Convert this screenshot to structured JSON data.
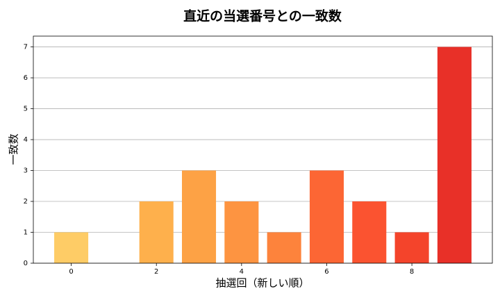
{
  "chart_data": {
    "type": "bar",
    "title": "直近の当選番号との一致数",
    "x_label": "抽選回（新しい順）",
    "y_label": "一致数",
    "x": [
      0,
      1,
      2,
      3,
      4,
      5,
      6,
      7,
      8,
      9
    ],
    "values": [
      1,
      0,
      2,
      3,
      2,
      1,
      3,
      2,
      1,
      7
    ],
    "colors": [
      "#fecc66",
      "#febe59",
      "#feb04c",
      "#fda245",
      "#fd9441",
      "#fd833c",
      "#fc6634",
      "#fb5330",
      "#f4442b",
      "#e83028"
    ],
    "xlim": [
      -0.89,
      9.89
    ],
    "xticks": [
      0,
      2,
      4,
      6,
      8
    ],
    "ylim": [
      0,
      7.35
    ],
    "yticks": [
      0,
      1,
      2,
      3,
      4,
      5,
      6,
      7
    ],
    "grid": true
  }
}
